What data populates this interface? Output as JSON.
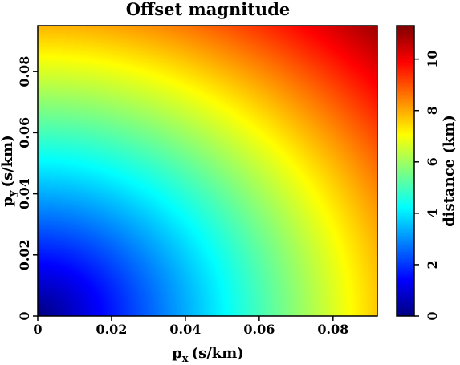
{
  "chart_data": {
    "type": "heatmap",
    "title": "Offset magnitude",
    "xlabel": "p_x (s/km)",
    "ylabel": "p_y (s/km)",
    "xlabel_main": "p",
    "xlabel_sub": "x",
    "xlabel_unit": "(s/km)",
    "ylabel_main": "p",
    "ylabel_sub": "y",
    "ylabel_unit": "(s/km)",
    "xlim": [
      0,
      0.092
    ],
    "ylim": [
      0,
      0.095
    ],
    "x_ticks": [
      0,
      0.02,
      0.04,
      0.06,
      0.08
    ],
    "x_tick_labels": [
      "0",
      "0.02",
      "0.04",
      "0.06",
      "0.08"
    ],
    "y_ticks": [
      0,
      0.02,
      0.04,
      0.06,
      0.08
    ],
    "y_tick_labels": [
      "0",
      "0.02",
      "0.04",
      "0.06",
      "0.08"
    ],
    "field": "distance grows radially from the origin, about 11 km at (0.092, 0.095)",
    "value_at_max_corner": 11,
    "colorbar": {
      "label": "distance (km)",
      "colormap": "jet",
      "range": [
        0,
        11.3
      ],
      "ticks": [
        0,
        2,
        4,
        6,
        8,
        10
      ],
      "tick_labels": [
        "0",
        "2",
        "4",
        "6",
        "8",
        "10"
      ]
    },
    "grid": false
  }
}
